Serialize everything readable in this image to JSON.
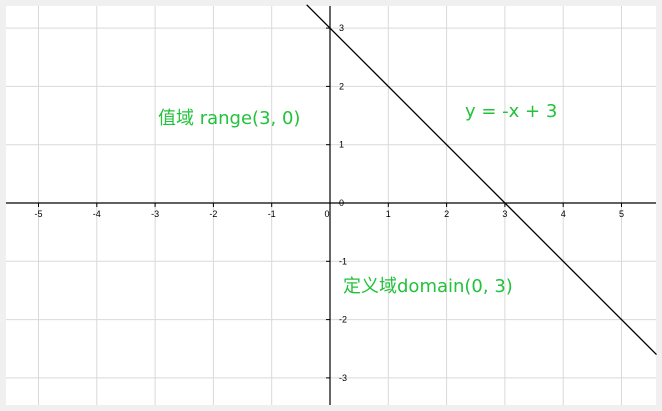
{
  "chart_data": {
    "type": "line",
    "title": "",
    "xlabel": "",
    "ylabel": "",
    "xlim": [
      -5.5,
      5.6
    ],
    "ylim": [
      -3.45,
      3.4
    ],
    "grid": true,
    "x_ticks": [
      -5,
      -4,
      -3,
      -2,
      -1,
      0,
      1,
      2,
      3,
      4,
      5
    ],
    "y_ticks": [
      -3,
      -2,
      -1,
      0,
      1,
      2,
      3
    ],
    "series": [
      {
        "x": [
          -0.4,
          5.6
        ],
        "y": [
          3.4,
          -2.6
        ]
      }
    ],
    "annotations": [
      {
        "id": "equation",
        "text": "y = -x + 3"
      },
      {
        "id": "range",
        "text": "值域 range(3, 0)"
      },
      {
        "id": "domain",
        "text": "定义域domain(0, 3)"
      }
    ],
    "colors": {
      "line": "#000000",
      "annotation": "#22c23a",
      "grid": "#d9d9d9",
      "background": "#f0f0f0"
    }
  }
}
